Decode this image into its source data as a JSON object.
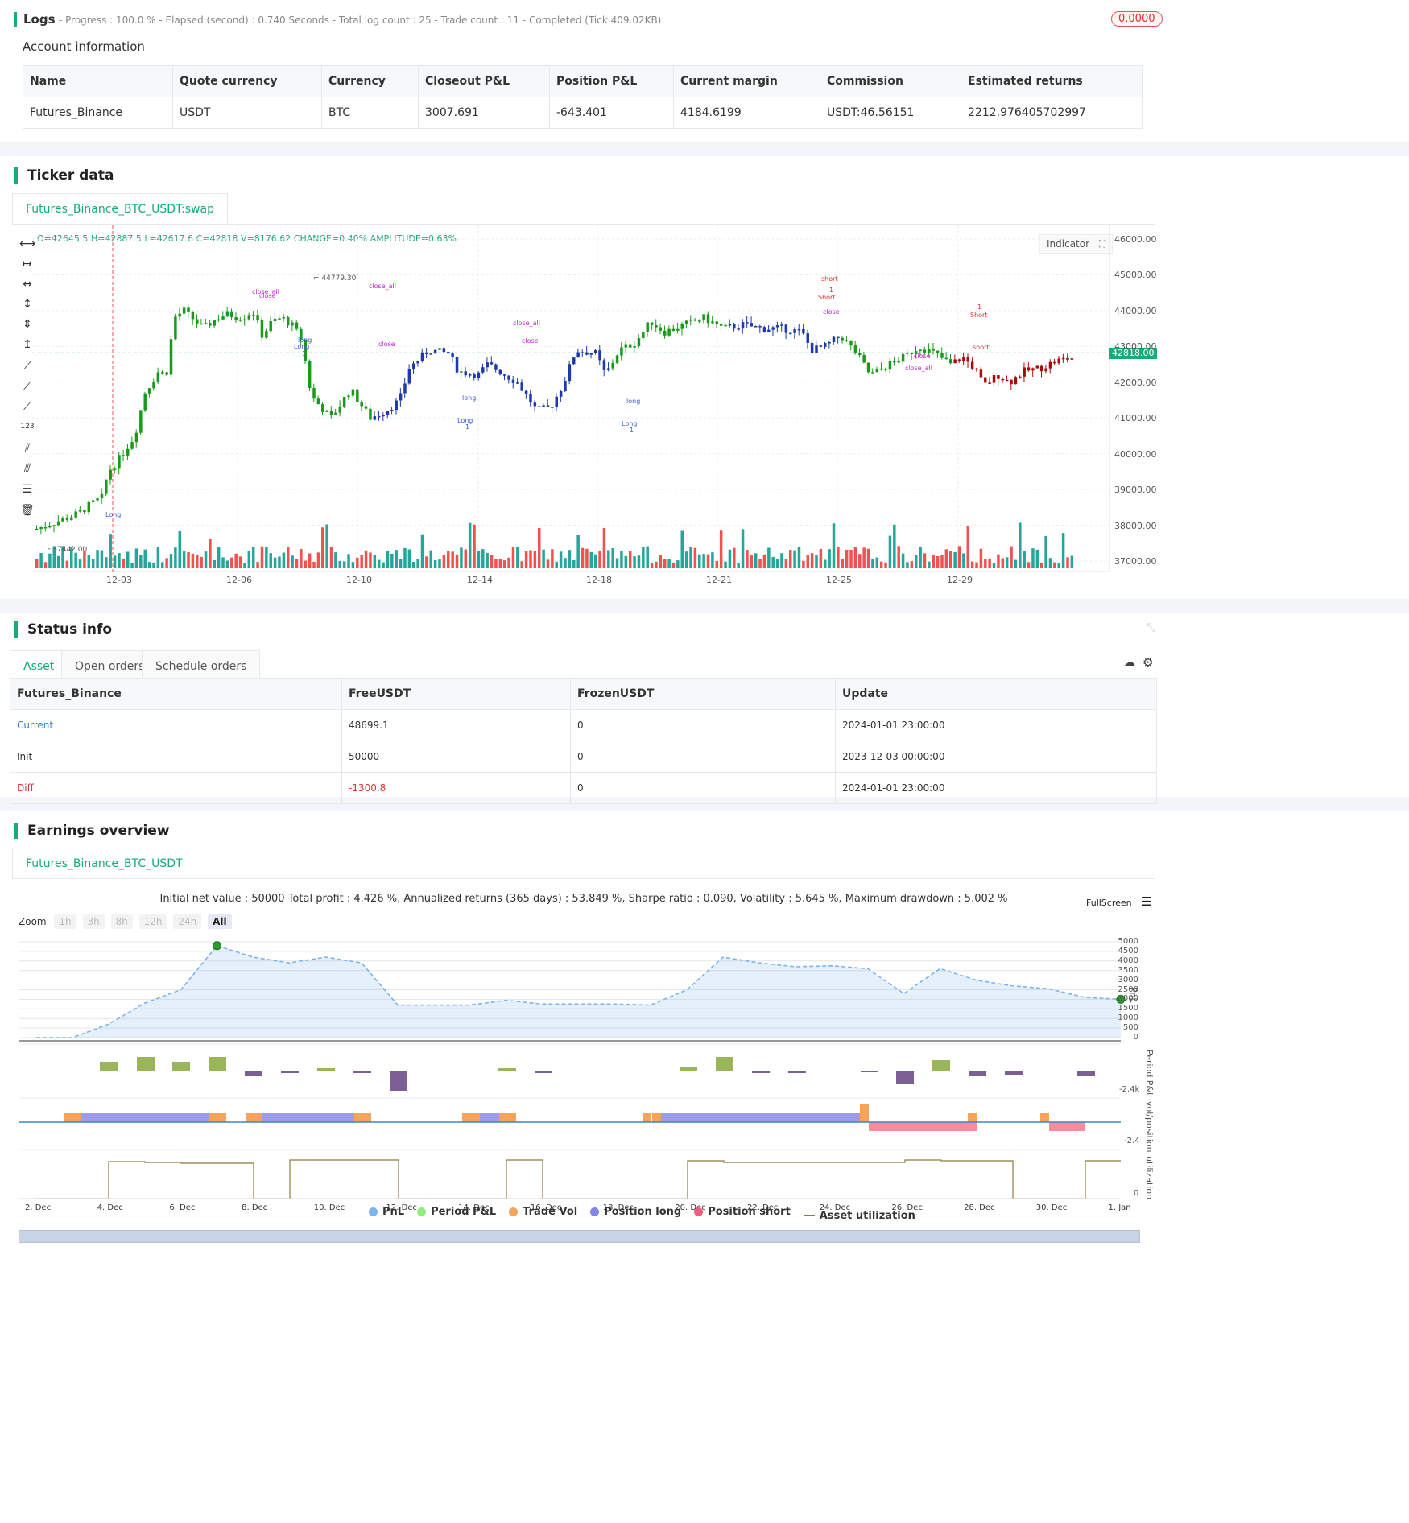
{
  "logs": {
    "title": "Logs",
    "summary": "- Progress : 100.0 % - Elapsed (second) : 0.740  Seconds - Total log count : 25 - Trade count : 11 - Completed (Tick 409.02KB)",
    "badge": "0.0000"
  },
  "account": {
    "title": "Account information",
    "headers": [
      "Name",
      "Quote currency",
      "Currency",
      "Closeout P&L",
      "Position P&L",
      "Current margin",
      "Commission",
      "Estimated returns"
    ],
    "row": [
      "Futures_Binance",
      "USDT",
      "BTC",
      "3007.691",
      "-643.401",
      "4184.6199",
      "USDT:46.56151",
      "2212.976405702997"
    ]
  },
  "ticker": {
    "title": "Ticker data",
    "tab": "Futures_Binance_BTC_USDT:swap",
    "ohlc": "O=42645.5 H=42887.5 L=42617.6 C=42818 V=8176.62 CHANGE=0.40% AMPLITUDE=0.63%",
    "indicator_btn": "Indicator",
    "current_price": "42818.00",
    "high_label": "44779.30",
    "low_label": "37442.00",
    "y_ticks": [
      "46000.00",
      "45000.00",
      "44000.00",
      "43000.00",
      "42000.00",
      "41000.00",
      "40000.00",
      "39000.00",
      "38000.00",
      "37000.00"
    ],
    "x_ticks": [
      "12-03",
      "12-06",
      "12-10",
      "12-14",
      "12-18",
      "12-21",
      "12-25",
      "12-29"
    ],
    "signals": [
      {
        "text": "close_all",
        "color": "#c026d3"
      },
      {
        "text": "close",
        "color": "#c026d3"
      },
      {
        "text": "close_all",
        "color": "#c026d3"
      },
      {
        "text": "close",
        "color": "#c026d3"
      },
      {
        "text": "close_all",
        "color": "#c026d3"
      },
      {
        "text": "close",
        "color": "#c026d3"
      },
      {
        "text": "long",
        "color": "#3b5bd6"
      },
      {
        "text": "Long",
        "color": "#3b5bd6"
      },
      {
        "text": "1",
        "color": "#3b5bd6"
      },
      {
        "text": "Long",
        "color": "#3b5bd6"
      },
      {
        "text": "long",
        "color": "#3b5bd6"
      },
      {
        "text": "Long",
        "color": "#3b5bd6"
      },
      {
        "text": "1",
        "color": "#3b5bd6"
      },
      {
        "text": "long",
        "color": "#3b5bd6"
      },
      {
        "text": "Long",
        "color": "#3b5bd6"
      },
      {
        "text": "1",
        "color": "#3b5bd6"
      },
      {
        "text": "short",
        "color": "#d33"
      },
      {
        "text": "1",
        "color": "#d33"
      },
      {
        "text": "Short",
        "color": "#d33"
      },
      {
        "text": "close",
        "color": "#c026d3"
      },
      {
        "text": "close",
        "color": "#c026d3"
      },
      {
        "text": "close_all",
        "color": "#c026d3"
      },
      {
        "text": "1",
        "color": "#d33"
      },
      {
        "text": "Short",
        "color": "#d33"
      },
      {
        "text": "short",
        "color": "#d33"
      }
    ]
  },
  "status": {
    "title": "Status info",
    "tabs": [
      "Asset",
      "Open orders",
      "Schedule orders"
    ],
    "headers": [
      "Futures_Binance",
      "FreeUSDT",
      "FrozenUSDT",
      "Update"
    ],
    "rows": [
      [
        "Current",
        "48699.1",
        "0",
        "2024-01-01 23:00:00"
      ],
      [
        "Init",
        "50000",
        "0",
        "2023-12-03 00:00:00"
      ],
      [
        "Diff",
        "-1300.8",
        "0",
        "2024-01-01 23:00:00"
      ]
    ]
  },
  "earnings": {
    "title": "Earnings overview",
    "tab": "Futures_Binance_BTC_USDT",
    "summary": "Initial net value : 50000 Total profit : 4.426 %, Annualized returns (365 days) : 53.849 %, Sharpe ratio : 0.090, Volatility : 5.645 %, Maximum drawdown : 5.002 %",
    "fullscreen": "FullScreen",
    "zoom_label": "Zoom",
    "zoom_buttons": [
      "1h",
      "3h",
      "8h",
      "12h",
      "24h",
      "All"
    ],
    "pnl_ticks": [
      "5000",
      "4500",
      "4000",
      "3500",
      "3000",
      "2500",
      "2000",
      "1500",
      "1000",
      "500",
      "0"
    ],
    "axis_labels": [
      "PnL",
      "Period P&L",
      "vol/position",
      "utilization"
    ],
    "period_low": "-2.4k",
    "vol_low": "-2.4",
    "util_zero": "0",
    "x_ticks": [
      "2. Dec",
      "4. Dec",
      "6. Dec",
      "8. Dec",
      "10. Dec",
      "12. Dec",
      "14. Dec",
      "16. Dec",
      "18. Dec",
      "20. Dec",
      "22. Dec",
      "24. Dec",
      "26. Dec",
      "28. Dec",
      "30. Dec",
      "1. Jan"
    ],
    "legend": [
      {
        "name": "PnL",
        "color": "#7cb5ec"
      },
      {
        "name": "Period P&L",
        "color": "#90ed7d"
      },
      {
        "name": "Trade Vol",
        "color": "#f7a35c"
      },
      {
        "name": "Position long",
        "color": "#8085e9"
      },
      {
        "name": "Position short",
        "color": "#f15c80"
      },
      {
        "name": "Asset utilization",
        "color": "#8d7b3f"
      }
    ]
  },
  "chart_data": {
    "type": "line",
    "title": "",
    "series": [
      {
        "name": "PnL",
        "values": [
          0,
          0,
          700,
          1800,
          2500,
          4800,
          4200,
          3900,
          4200,
          3900,
          1700,
          1700,
          1700,
          1950,
          1750,
          1750,
          1750,
          1700,
          2500,
          4200,
          3900,
          3700,
          3750,
          3600,
          2300,
          3600,
          3000,
          2700,
          2550,
          2100,
          2000
        ]
      }
    ],
    "x": [
      "2. Dec",
      "3. Dec",
      "4. Dec",
      "5. Dec",
      "6. Dec",
      "7. Dec",
      "8. Dec",
      "9. Dec",
      "10. Dec",
      "11. Dec",
      "12. Dec",
      "13. Dec",
      "14. Dec",
      "15. Dec",
      "16. Dec",
      "17. Dec",
      "18. Dec",
      "19. Dec",
      "20. Dec",
      "21. Dec",
      "22. Dec",
      "23. Dec",
      "24. Dec",
      "25. Dec",
      "26. Dec",
      "27. Dec",
      "28. Dec",
      "29. Dec",
      "30. Dec",
      "31. Dec",
      "1. Jan"
    ],
    "ylim": [
      0,
      5000
    ]
  }
}
